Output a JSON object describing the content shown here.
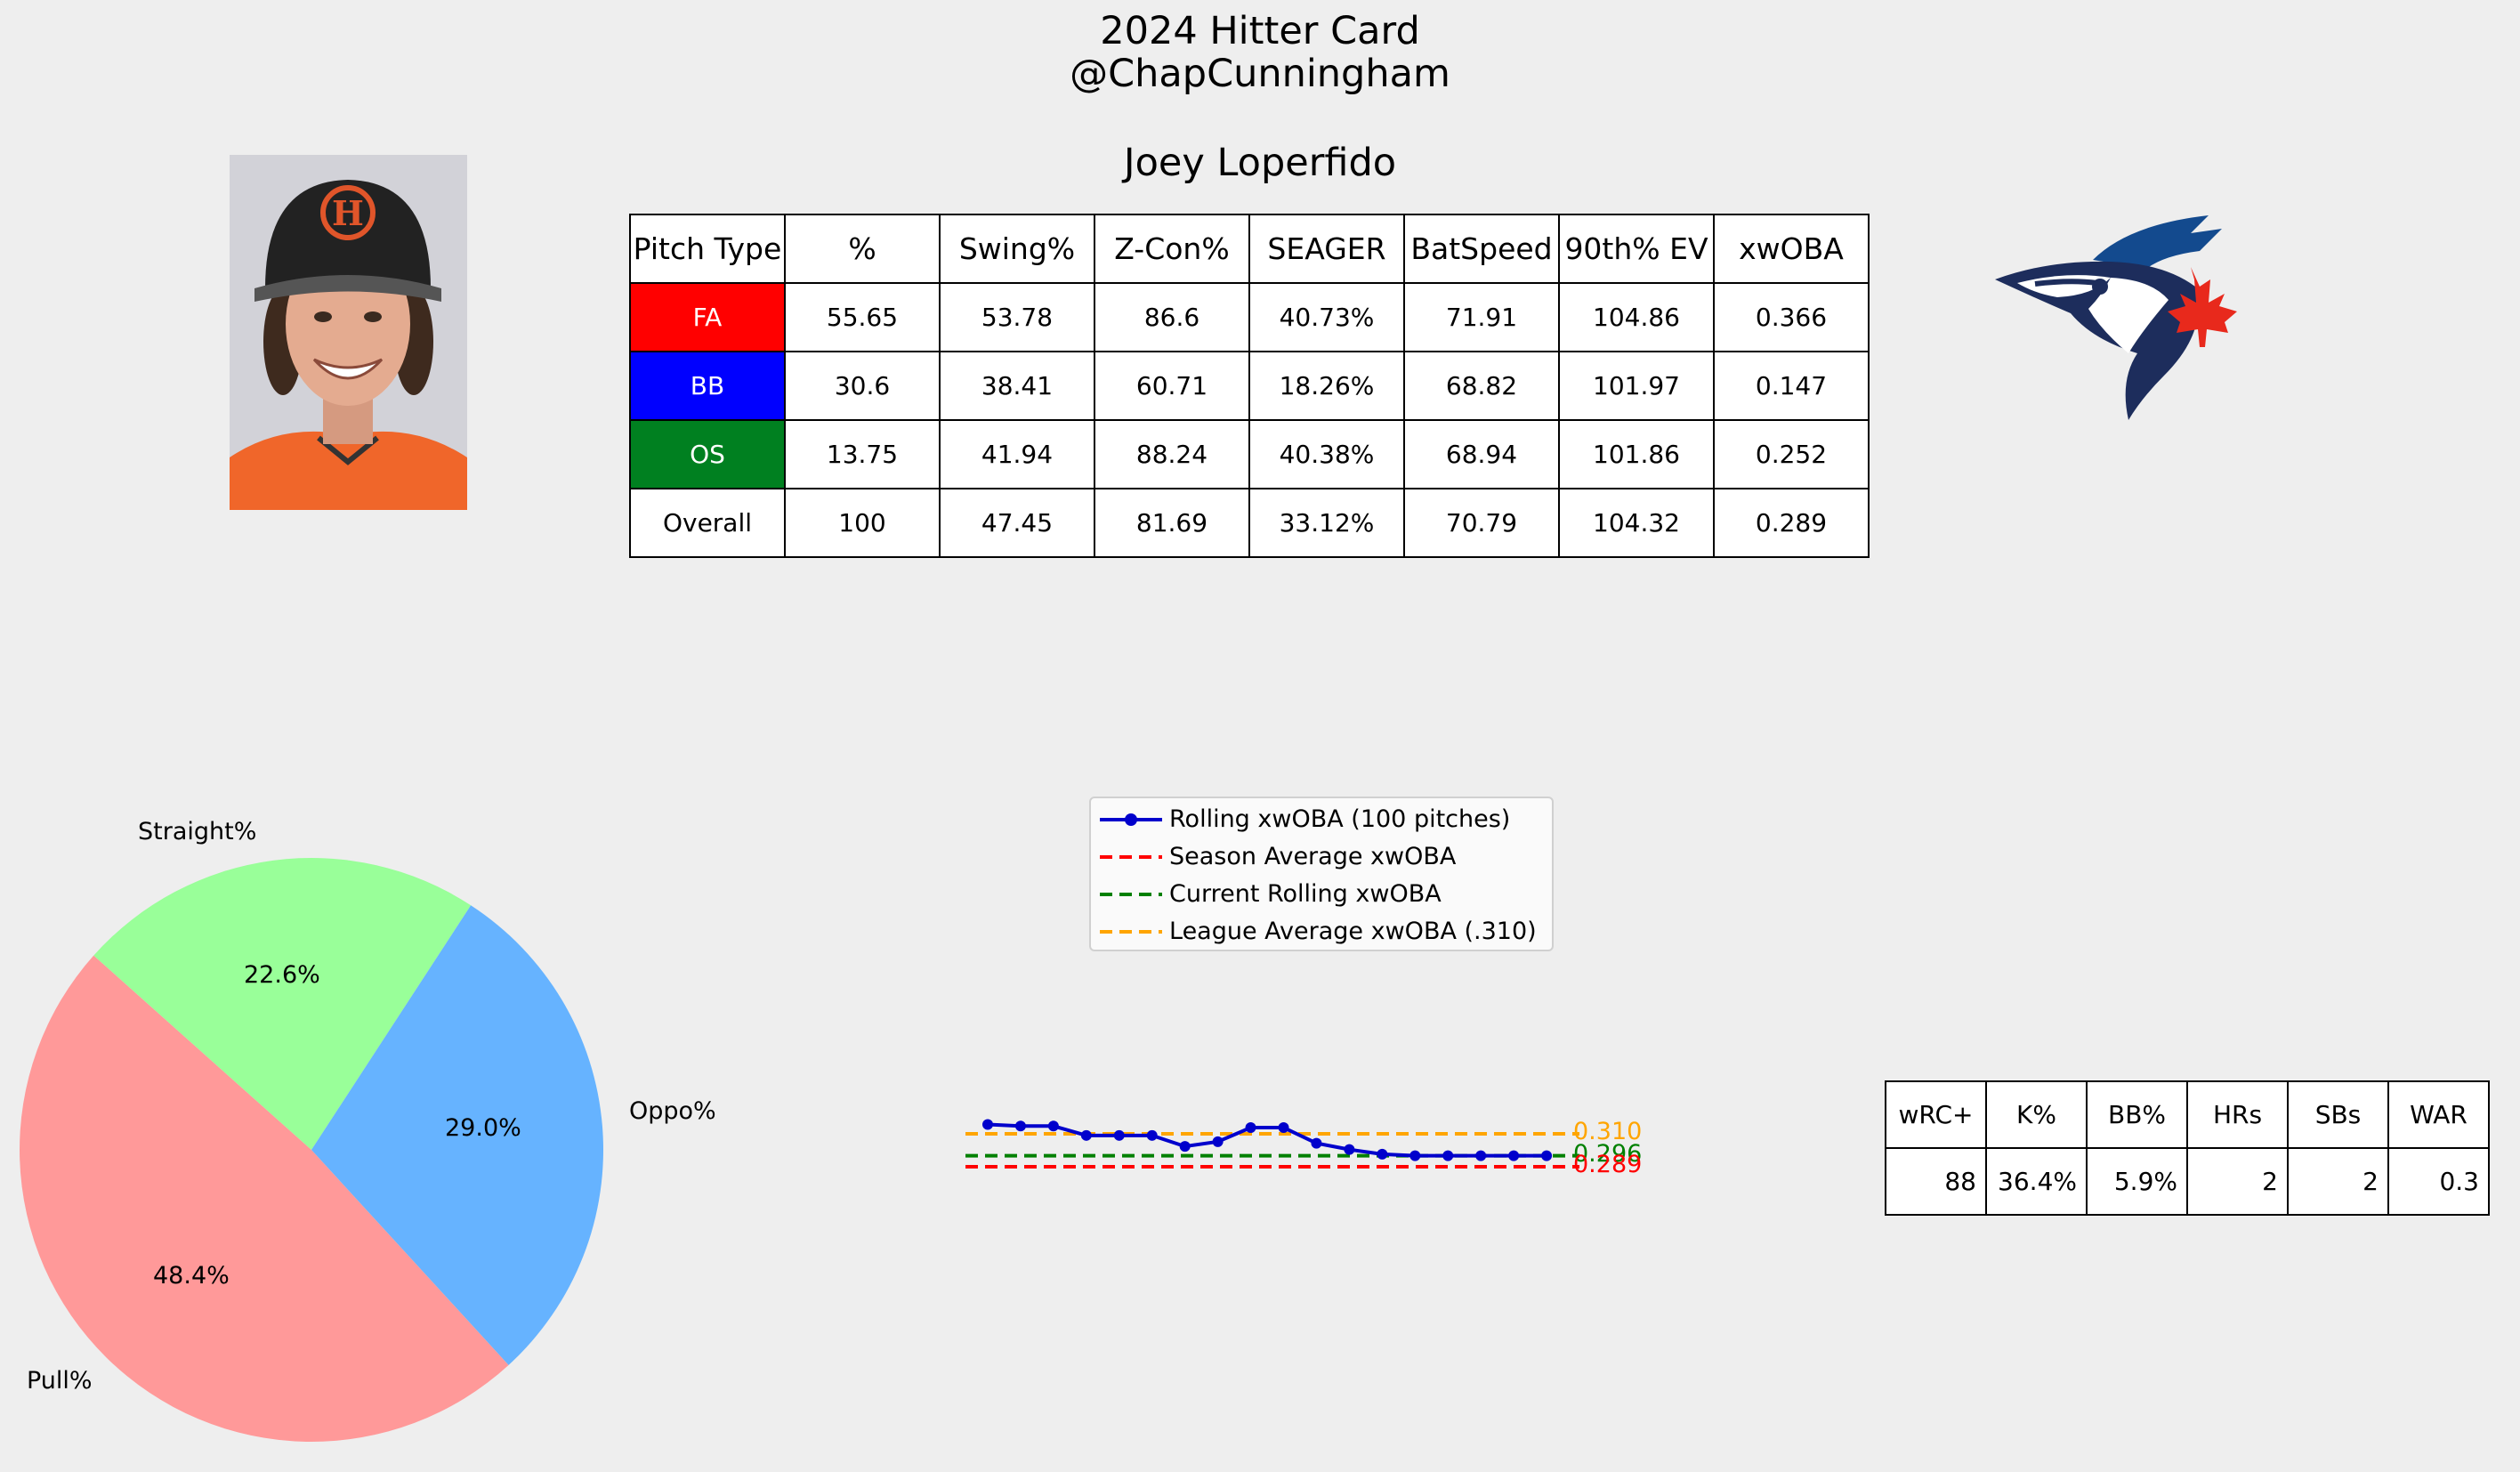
{
  "header": {
    "title_line1": "2024 Hitter Card",
    "title_line2": "@ChapCunningham",
    "player_name": "Joey Loperfido"
  },
  "pitch_table": {
    "columns": [
      "Pitch Type",
      "%",
      "Swing%",
      "Z-Con%",
      "SEAGER",
      "BatSpeed",
      "90th% EV",
      "xwOBA"
    ],
    "rows": [
      {
        "label": "FA",
        "color": "#ff0000",
        "values": [
          "55.65",
          "53.78",
          "86.6",
          "40.73%",
          "71.91",
          "104.86",
          "0.366"
        ]
      },
      {
        "label": "BB",
        "color": "#0000ff",
        "values": [
          "30.6",
          "38.41",
          "60.71",
          "18.26%",
          "68.82",
          "101.97",
          "0.147"
        ]
      },
      {
        "label": "OS",
        "color": "#008020",
        "values": [
          "13.75",
          "41.94",
          "88.24",
          "40.38%",
          "68.94",
          "101.86",
          "0.252"
        ]
      },
      {
        "label": "Overall",
        "color": "#ffffff",
        "values": [
          "100",
          "47.45",
          "81.69",
          "33.12%",
          "70.79",
          "104.32",
          "0.289"
        ]
      }
    ]
  },
  "stats_table": {
    "columns": [
      "wRC+",
      "K%",
      "BB%",
      "HRs",
      "SBs",
      "WAR"
    ],
    "values": [
      "88",
      "36.4%",
      "5.9%",
      "2",
      "2",
      "0.3"
    ]
  },
  "chart_data": [
    {
      "type": "pie",
      "labels": [
        "Pull%",
        "Straight%",
        "Oppo%"
      ],
      "values": [
        48.4,
        22.6,
        29.0
      ],
      "value_labels": [
        "48.4%",
        "22.6%",
        "29.0%"
      ],
      "colors": [
        "#ff9999",
        "#99ff99",
        "#66b3ff"
      ]
    },
    {
      "type": "line",
      "legend_placement": "top",
      "series": [
        {
          "name": "Rolling xwOBA (100 pitches)",
          "color": "#0000cc",
          "style": "solid-marker",
          "values": [
            0.316,
            0.315,
            0.315,
            0.309,
            0.309,
            0.309,
            0.302,
            0.305,
            0.314,
            0.314,
            0.304,
            0.3,
            0.297,
            0.296,
            0.296,
            0.296,
            0.296,
            0.296
          ]
        },
        {
          "name": "Season Average xwOBA",
          "color": "#ff0000",
          "style": "dashed",
          "value": 0.289,
          "value_label": "0.289"
        },
        {
          "name": "Current Rolling xwOBA",
          "color": "#008000",
          "style": "dashed",
          "value": 0.296,
          "value_label": "0.296"
        },
        {
          "name": "League Average xwOBA (.310)",
          "color": "#ffa500",
          "style": "dashed",
          "value": 0.31,
          "value_label": "0.310"
        }
      ]
    }
  ],
  "icons": {
    "photo": "player-headshot",
    "logo": "blue-jays-logo"
  }
}
